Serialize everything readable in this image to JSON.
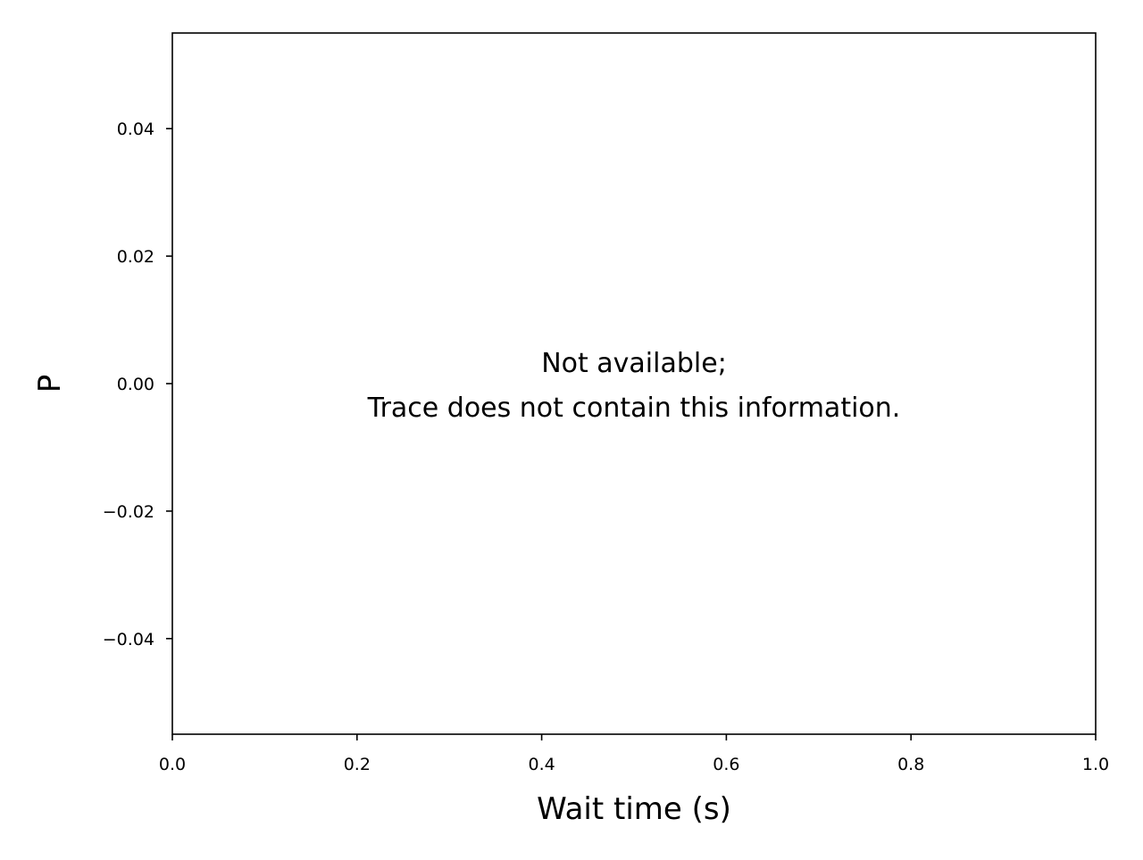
{
  "chart_data": {
    "type": "line",
    "title": "",
    "xlabel": "Wait time (s)",
    "ylabel": "P",
    "xlim": [
      0.0,
      1.0
    ],
    "ylim": [
      -0.055,
      0.055
    ],
    "x_ticks": [
      0.0,
      0.2,
      0.4,
      0.6,
      0.8,
      1.0
    ],
    "x_tick_labels": [
      "0.0",
      "0.2",
      "0.4",
      "0.6",
      "0.8",
      "1.0"
    ],
    "y_ticks": [
      -0.04,
      -0.02,
      0.0,
      0.02,
      0.04
    ],
    "y_tick_labels": [
      "−0.04",
      "−0.02",
      "0.00",
      "0.02",
      "0.04"
    ],
    "grid": false,
    "series": [],
    "annotation": {
      "lines": [
        "Not available;",
        "Trace does not contain this information."
      ]
    }
  }
}
